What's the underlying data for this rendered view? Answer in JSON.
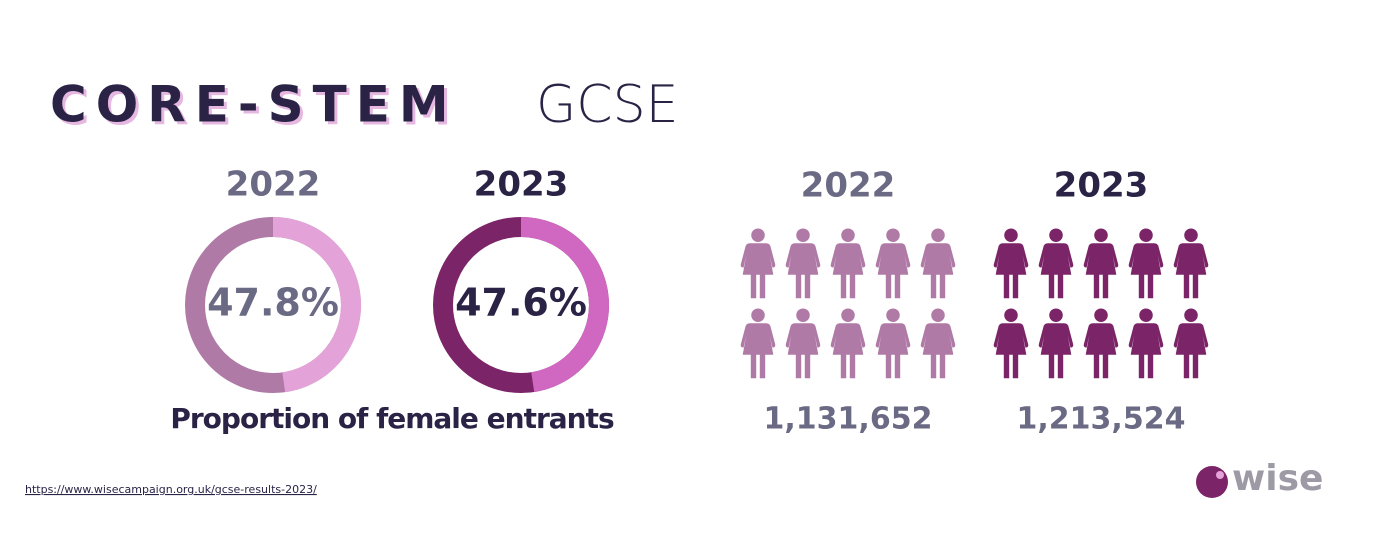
{
  "header": {
    "title": "CORE-STEM",
    "subtitle": "GCSE"
  },
  "proportions": {
    "caption": "Proportion of female entrants",
    "items": [
      {
        "year": "2022",
        "value": 47.8,
        "value_label": "47.8%",
        "color": "#e4a3d8",
        "track_color": "#b07aa6",
        "text_color": "#6b6a85"
      },
      {
        "year": "2023",
        "value": 47.6,
        "value_label": "47.6%",
        "color": "#d067c0",
        "track_color": "#7b2468",
        "text_color": "#2a2346"
      }
    ]
  },
  "entrants": {
    "items": [
      {
        "year": "2022",
        "count": "1,131,652",
        "color": "#b07aa6",
        "text_color": "#6b6a85"
      },
      {
        "year": "2023",
        "count": "1,213,524",
        "color": "#7b2468",
        "text_color": "#2a2346"
      }
    ]
  },
  "footer": {
    "source_url": "https://www.wisecampaign.org.uk/gcse-results-2023/",
    "logo": "wise"
  }
}
